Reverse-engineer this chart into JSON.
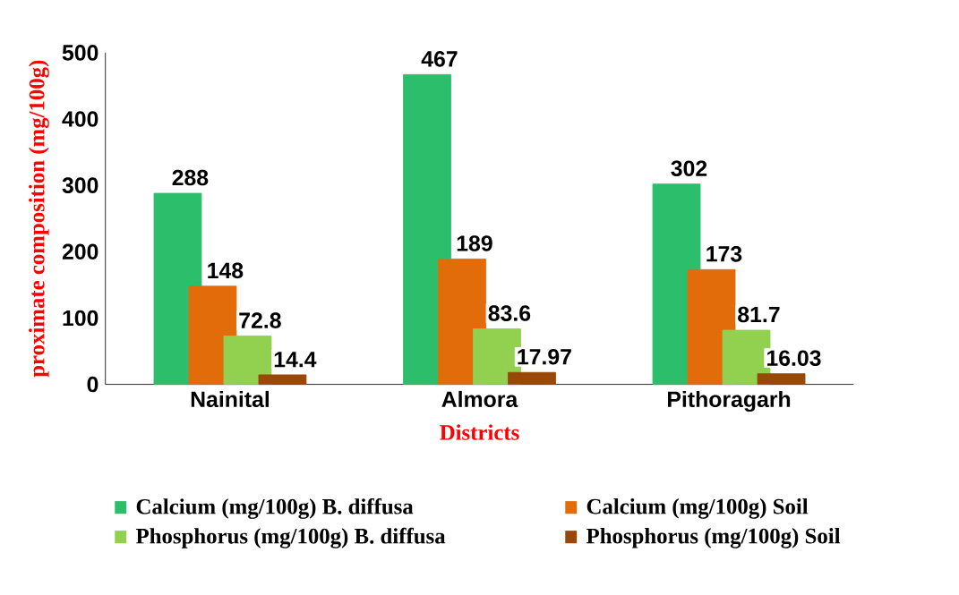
{
  "chart_data": {
    "type": "bar",
    "categories": [
      "Nainital",
      "Almora",
      "Pithoragarh"
    ],
    "series": [
      {
        "name": "Calcium (mg/100g) B. diffusa",
        "color": "#2dbe6c",
        "values": [
          288,
          467,
          302
        ]
      },
      {
        "name": "Calcium (mg/100g) Soil",
        "color": "#e36c0a",
        "values": [
          148,
          189,
          173
        ]
      },
      {
        "name": "Phosphorus (mg/100g) B. diffusa",
        "color": "#92d050",
        "values": [
          72.8,
          83.6,
          81.7
        ]
      },
      {
        "name": "Phosphorus (mg/100g) Soil",
        "color": "#984807",
        "values": [
          14.4,
          17.97,
          16.03
        ]
      }
    ],
    "xlabel": "Districts",
    "ylabel": "proximate composition (mg/100g)",
    "ylim": [
      0,
      500
    ],
    "yticks": [
      0,
      100,
      200,
      300,
      400,
      500
    ],
    "data_labels": true,
    "legend": "bottom",
    "grid": false
  }
}
